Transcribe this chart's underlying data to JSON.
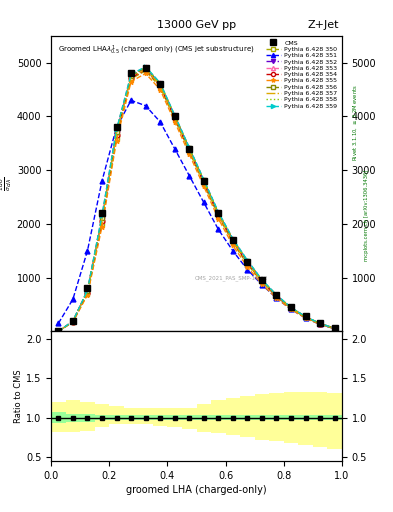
{
  "title_top": "13000 GeV pp",
  "title_right": "Z+Jet",
  "xlabel": "groomed LHA (charged-only)",
  "ylabel_main": "$\\frac{1}{\\sigma}\\frac{d\\sigma}{d\\lambda}$",
  "ylabel_ratio": "Ratio to CMS",
  "watermark": "CMS_2021_PAS_SMP-19-02",
  "x_bins": [
    0.0,
    0.05,
    0.1,
    0.15,
    0.2,
    0.25,
    0.3,
    0.35,
    0.4,
    0.45,
    0.5,
    0.55,
    0.6,
    0.65,
    0.7,
    0.75,
    0.8,
    0.85,
    0.9,
    0.95,
    1.0
  ],
  "cms_data": [
    0.0,
    200,
    800,
    2200,
    3800,
    4800,
    4900,
    4600,
    4000,
    3400,
    2800,
    2200,
    1700,
    1300,
    950,
    680,
    450,
    280,
    150,
    60
  ],
  "series": [
    {
      "label": "Pythia 6.428 350",
      "color": "#aaaa00",
      "linestyle": "--",
      "marker": "s",
      "markerfacecolor": "white",
      "data": [
        0,
        180,
        700,
        2000,
        3600,
        4700,
        4850,
        4550,
        3950,
        3350,
        2750,
        2150,
        1650,
        1250,
        920,
        650,
        430,
        260,
        140,
        55
      ]
    },
    {
      "label": "Pythia 6.428 351",
      "color": "#0000ff",
      "linestyle": "--",
      "marker": "^",
      "markerfacecolor": "#0000ff",
      "data": [
        150,
        600,
        1500,
        2800,
        3800,
        4300,
        4200,
        3900,
        3400,
        2900,
        2400,
        1900,
        1500,
        1150,
        870,
        620,
        410,
        250,
        130,
        50
      ]
    },
    {
      "label": "Pythia 6.428 352",
      "color": "#6600cc",
      "linestyle": "-.",
      "marker": "v",
      "markerfacecolor": "#6600cc",
      "data": [
        0,
        190,
        750,
        2100,
        3700,
        4750,
        4900,
        4600,
        4000,
        3400,
        2800,
        2200,
        1700,
        1300,
        950,
        670,
        440,
        270,
        145,
        58
      ]
    },
    {
      "label": "Pythia 6.428 353",
      "color": "#ff66aa",
      "linestyle": "--",
      "marker": "^",
      "markerfacecolor": "white",
      "data": [
        0,
        195,
        760,
        2150,
        3750,
        4780,
        4920,
        4620,
        4020,
        3420,
        2820,
        2220,
        1720,
        1320,
        960,
        680,
        445,
        275,
        148,
        59
      ]
    },
    {
      "label": "Pythia 6.428 354",
      "color": "#cc0000",
      "linestyle": "--",
      "marker": "o",
      "markerfacecolor": "white",
      "data": [
        0,
        185,
        720,
        2050,
        3650,
        4720,
        4870,
        4570,
        3970,
        3370,
        2770,
        2170,
        1670,
        1270,
        930,
        660,
        435,
        265,
        142,
        56
      ]
    },
    {
      "label": "Pythia 6.428 355",
      "color": "#ff8800",
      "linestyle": "--",
      "marker": "*",
      "markerfacecolor": "#ff8800",
      "data": [
        0,
        175,
        680,
        1950,
        3550,
        4650,
        4800,
        4500,
        3900,
        3300,
        2700,
        2100,
        1600,
        1200,
        880,
        620,
        410,
        250,
        130,
        52
      ]
    },
    {
      "label": "Pythia 6.428 356",
      "color": "#888800",
      "linestyle": "--",
      "marker": "s",
      "markerfacecolor": "white",
      "data": [
        0,
        192,
        755,
        2120,
        3720,
        4760,
        4910,
        4610,
        4010,
        3410,
        2810,
        2210,
        1710,
        1310,
        955,
        675,
        442,
        272,
        147,
        58
      ]
    },
    {
      "label": "Pythia 6.428 357",
      "color": "#ddaa00",
      "linestyle": "-.",
      "marker": "None",
      "markerfacecolor": "#ddaa00",
      "data": [
        0,
        188,
        740,
        2080,
        3680,
        4730,
        4880,
        4580,
        3980,
        3380,
        2780,
        2180,
        1680,
        1280,
        935,
        662,
        437,
        267,
        143,
        57
      ]
    },
    {
      "label": "Pythia 6.428 358",
      "color": "#88cc00",
      "linestyle": ":",
      "marker": "None",
      "markerfacecolor": "#88cc00",
      "data": [
        0,
        193,
        758,
        2130,
        3730,
        4765,
        4915,
        4615,
        4015,
        3415,
        2815,
        2215,
        1715,
        1315,
        957,
        677,
        443,
        273,
        148,
        59
      ]
    },
    {
      "label": "Pythia 6.428 359",
      "color": "#00cccc",
      "linestyle": "--",
      "marker": ">",
      "markerfacecolor": "#00cccc",
      "data": [
        0,
        196,
        765,
        2160,
        3760,
        4785,
        4925,
        4625,
        4025,
        3425,
        2825,
        2225,
        1725,
        1325,
        962,
        682,
        447,
        277,
        149,
        60
      ]
    }
  ],
  "ratio_green_lo": [
    0.93,
    0.95,
    0.95,
    0.97,
    0.97,
    0.97,
    0.97,
    0.97,
    0.97,
    0.97,
    0.97,
    0.97,
    0.97,
    0.97,
    0.97,
    0.97,
    0.97,
    0.97,
    0.97,
    0.97
  ],
  "ratio_green_hi": [
    1.07,
    1.05,
    1.05,
    1.03,
    1.03,
    1.03,
    1.03,
    1.03,
    1.03,
    1.03,
    1.03,
    1.03,
    1.03,
    1.03,
    1.03,
    1.03,
    1.03,
    1.03,
    1.03,
    1.03
  ],
  "ratio_yellow_lo": [
    0.82,
    0.82,
    0.83,
    0.88,
    0.92,
    0.92,
    0.92,
    0.9,
    0.88,
    0.86,
    0.82,
    0.8,
    0.78,
    0.75,
    0.72,
    0.7,
    0.68,
    0.65,
    0.62,
    0.6
  ],
  "ratio_yellow_hi": [
    1.2,
    1.22,
    1.2,
    1.18,
    1.15,
    1.12,
    1.12,
    1.12,
    1.12,
    1.12,
    1.18,
    1.22,
    1.25,
    1.28,
    1.3,
    1.32,
    1.33,
    1.33,
    1.33,
    1.32
  ],
  "ylim_main": [
    0,
    5500
  ],
  "ylim_ratio": [
    0.45,
    2.1
  ],
  "yticks_main": [
    1000,
    2000,
    3000,
    4000,
    5000
  ],
  "yticks_ratio": [
    0.5,
    1.0,
    1.5,
    2.0
  ],
  "background_color": "#ffffff"
}
